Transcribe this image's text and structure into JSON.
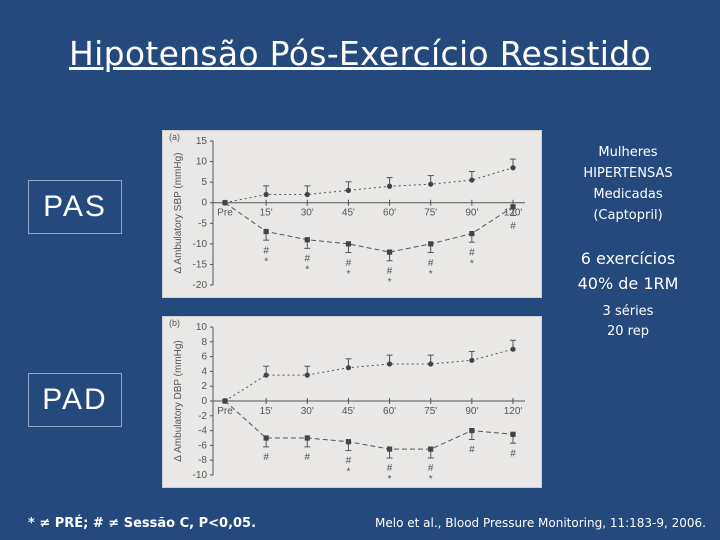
{
  "slide": {
    "title": "Hipotensão Pós-Exercício Resistido",
    "pas_label": "PAS",
    "pad_label": "PAD",
    "side_info": {
      "group": [
        "Mulheres",
        "HIPERTENSAS",
        "Medicadas",
        "(Captopril)"
      ],
      "exercises": "6 exercícios",
      "intensity": "40% de 1RM",
      "series": [
        "3 séries",
        "20 rep"
      ]
    },
    "footnote": "* ≠ PRÉ; # ≠ Sessão C, P<0,05.",
    "citation": "Melo et al., Blood Pressure Monitoring, 11:183-9, 2006.",
    "colors": {
      "background": "#24497c",
      "text": "#ffffff",
      "plot_bg": "#e9e8e6",
      "ink": "#555555"
    }
  },
  "chart_data": [
    {
      "type": "line",
      "panel_label": "(a)",
      "ylabel": "Δ Ambulatory SBP (mmHg)",
      "categories": [
        "Pre",
        "15'",
        "30'",
        "45'",
        "60'",
        "75'",
        "90'",
        "120'"
      ],
      "ylim": [
        -20,
        15
      ],
      "yticks": [
        "15",
        "10",
        "5",
        "0",
        "-5",
        "-10",
        "-15",
        "-20"
      ],
      "series": [
        {
          "style": "dotted-circle",
          "values": [
            0,
            2,
            2,
            3,
            4,
            4.5,
            5.5,
            8.5
          ]
        },
        {
          "style": "dashed-square",
          "values": [
            0,
            -7,
            -9,
            -10,
            -12,
            -10,
            -7.5,
            -1
          ]
        }
      ],
      "annotations": [
        {
          "category": "15'",
          "text": "#\n*"
        },
        {
          "category": "30'",
          "text": "#\n*"
        },
        {
          "category": "45'",
          "text": "#\n*"
        },
        {
          "category": "60'",
          "text": "#\n*"
        },
        {
          "category": "75'",
          "text": "#\n*"
        },
        {
          "category": "90'",
          "text": "#\n*"
        },
        {
          "category": "120'",
          "text": "#"
        }
      ]
    },
    {
      "type": "line",
      "panel_label": "(b)",
      "ylabel": "Δ Ambulatory DBP (mmHg)",
      "categories": [
        "Pre",
        "15'",
        "30'",
        "45'",
        "60'",
        "75'",
        "90'",
        "120'"
      ],
      "ylim": [
        -10,
        10
      ],
      "yticks": [
        "10",
        "8",
        "6",
        "4",
        "2",
        "0",
        "-2",
        "-4",
        "-6",
        "-8",
        "-10"
      ],
      "series": [
        {
          "style": "dotted-circle",
          "values": [
            0,
            3.5,
            3.5,
            4.5,
            5,
            5,
            5.5,
            7
          ]
        },
        {
          "style": "dashed-square",
          "values": [
            0,
            -5,
            -5,
            -5.5,
            -6.5,
            -6.5,
            -4,
            -4.5
          ]
        }
      ],
      "annotations": [
        {
          "category": "15'",
          "text": "#"
        },
        {
          "category": "30'",
          "text": "#"
        },
        {
          "category": "45'",
          "text": "#\n*"
        },
        {
          "category": "60'",
          "text": "#\n*"
        },
        {
          "category": "75'",
          "text": "#\n*"
        },
        {
          "category": "90'",
          "text": "#"
        },
        {
          "category": "120'",
          "text": "#"
        }
      ]
    }
  ]
}
